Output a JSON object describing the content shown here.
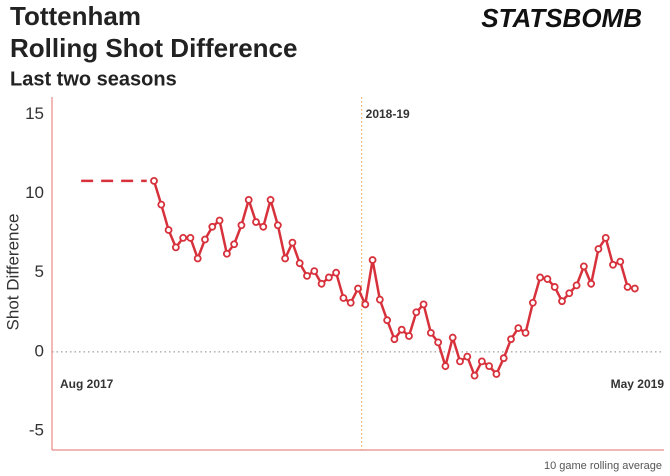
{
  "chart_data": {
    "type": "line",
    "title": "Tottenham",
    "subtitle": "Rolling Shot Difference",
    "subtitle2": "Last two seasons",
    "logo": "STATSBOMB",
    "ylabel": "Shot Difference",
    "footnote": "10 game rolling average",
    "color": "#d7313c",
    "x": [
      10,
      11,
      12,
      13,
      14,
      15,
      16,
      17,
      18,
      19,
      20,
      21,
      22,
      23,
      24,
      25,
      26,
      27,
      28,
      29,
      30,
      31,
      32,
      33,
      34,
      35,
      36,
      37,
      38,
      39,
      40,
      41,
      42,
      43,
      44,
      45,
      46,
      47,
      48,
      49,
      50,
      51,
      52,
      53,
      54,
      55,
      56,
      57,
      58,
      59,
      60,
      61,
      62,
      63,
      64,
      65,
      66,
      67,
      68,
      69,
      70,
      71,
      72,
      73,
      74,
      75,
      76
    ],
    "values": [
      10.8,
      9.3,
      7.7,
      6.6,
      7.2,
      7.2,
      5.9,
      7.1,
      7.9,
      8.3,
      6.2,
      6.8,
      8.0,
      9.6,
      8.2,
      7.9,
      9.6,
      8.0,
      5.9,
      6.9,
      5.6,
      4.8,
      5.1,
      4.3,
      4.7,
      5.0,
      3.4,
      3.1,
      4.0,
      3.0,
      5.8,
      3.3,
      2.0,
      0.8,
      1.4,
      1.0,
      2.5,
      3.0,
      1.2,
      0.6,
      -0.9,
      0.9,
      -0.6,
      -0.3,
      -1.5,
      -0.6,
      -0.9,
      -1.4,
      -0.4,
      0.8,
      1.5,
      1.2,
      3.1,
      4.7,
      4.6,
      4.1,
      3.2,
      3.7,
      4.2,
      5.4,
      4.3,
      6.5,
      7.2,
      5.5,
      5.7,
      4.1,
      4.0
    ],
    "dashed": {
      "x": [
        0,
        9
      ],
      "values": [
        10.8,
        10.8
      ]
    },
    "vline": {
      "x": 38.5,
      "label": "2018-19",
      "color": "#e8a33d"
    },
    "start_label": "Aug 2017",
    "end_label": "May 2019",
    "xlim": [
      -4,
      80
    ],
    "ylim": [
      -6.2,
      16.1
    ],
    "yticks": [
      -5,
      0,
      5,
      10,
      15
    ],
    "zero_line": true
  }
}
